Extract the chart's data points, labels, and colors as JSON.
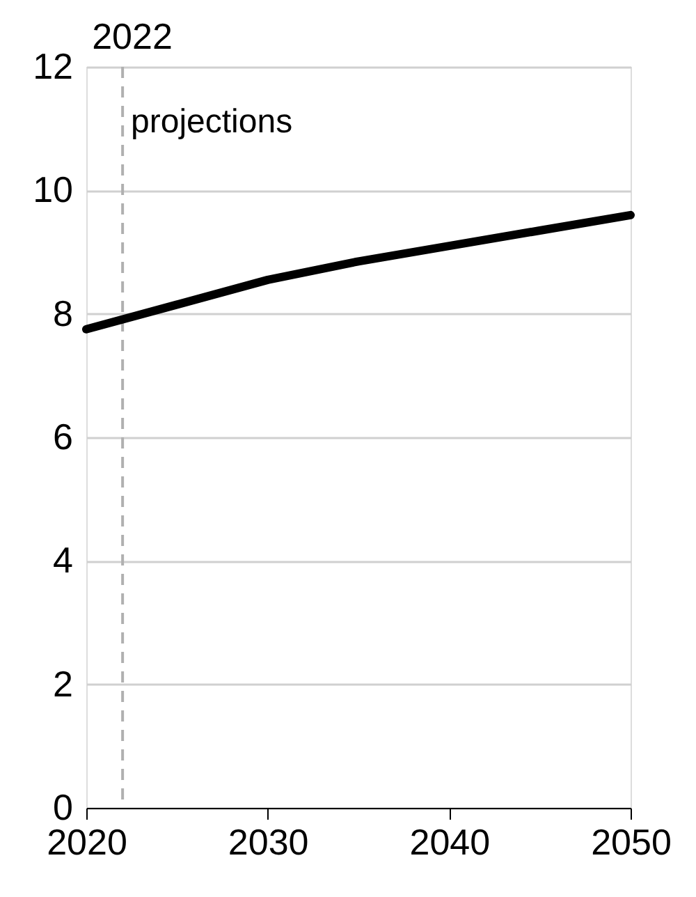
{
  "chart_data": {
    "type": "line",
    "x": [
      2020,
      2025,
      2030,
      2035,
      2040,
      2045,
      2050
    ],
    "series": [
      {
        "color": "#000000",
        "values": [
          7.75,
          8.15,
          8.55,
          8.85,
          9.1,
          9.35,
          9.6
        ]
      }
    ],
    "xlim": [
      2020,
      2050
    ],
    "xticks": [
      2020,
      2030,
      2040,
      2050
    ],
    "ylim": [
      0,
      12
    ],
    "yticks": [
      0,
      2,
      4,
      6,
      8,
      10,
      12
    ],
    "grid": "y",
    "marker": "none",
    "line_style": "solid",
    "ref_lines": [
      {
        "axis": "x",
        "value": 2022,
        "label": "2022",
        "color": "#b0b0b0",
        "line_style": "dashed"
      }
    ],
    "annotations": [
      "projections"
    ]
  }
}
